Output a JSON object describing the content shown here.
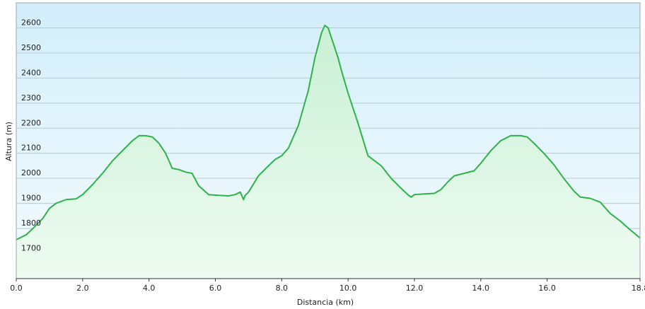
{
  "chart_data": {
    "type": "area",
    "xlabel": "Distancia  (km)",
    "ylabel": "Altura (m)",
    "xlim": [
      0,
      18.8
    ],
    "ylim": [
      1600,
      2700
    ],
    "xticks": [
      0,
      2,
      4,
      6,
      8,
      10,
      12,
      14,
      16,
      18.8
    ],
    "xtick_labels": [
      "0.0",
      "2.0",
      "4.0",
      "6.0",
      "8.0",
      "10.0",
      "12.0",
      "14.0",
      "16.0",
      "18.8"
    ],
    "yticks": [
      1700,
      1800,
      1900,
      2000,
      2100,
      2200,
      2300,
      2400,
      2500,
      2600
    ],
    "ytick_labels": [
      "1700",
      "1800",
      "1900",
      "2000",
      "2100",
      "2200",
      "2300",
      "2400",
      "2500",
      "2600"
    ],
    "grid": true,
    "colors": {
      "line": "#2db34a",
      "fill_top": "#c9f0d4",
      "fill_bottom": "#eefbf2",
      "bg_top": "#d2eefa",
      "bg_bottom": "#f4fbfe",
      "grid": "#b5c9d3"
    },
    "series": [
      {
        "x": [
          0.0,
          0.3,
          0.5,
          0.8,
          1.0,
          1.2,
          1.5,
          1.8,
          2.0,
          2.3,
          2.6,
          2.9,
          3.2,
          3.5,
          3.7,
          3.9,
          4.1,
          4.3,
          4.5,
          4.7,
          4.9,
          5.1,
          5.3,
          5.5,
          5.8,
          6.1,
          6.4,
          6.6,
          6.75,
          6.85,
          6.9,
          7.0,
          7.3,
          7.6,
          7.8,
          8.0,
          8.2,
          8.5,
          8.8,
          9.0,
          9.2,
          9.3,
          9.4,
          9.5,
          9.6,
          9.7,
          9.8,
          10.0,
          10.3,
          10.6,
          11.0,
          11.3,
          11.6,
          11.8,
          11.9,
          12.0,
          12.3,
          12.6,
          12.8,
          13.0,
          13.2,
          13.5,
          13.8,
          14.0,
          14.3,
          14.6,
          14.9,
          15.2,
          15.4,
          15.6,
          15.9,
          16.2,
          16.5,
          16.8,
          17.0,
          17.3,
          17.6,
          17.9,
          18.2,
          18.5,
          18.8
        ],
        "y": [
          1755,
          1775,
          1800,
          1840,
          1880,
          1900,
          1915,
          1918,
          1935,
          1975,
          2020,
          2070,
          2110,
          2150,
          2170,
          2170,
          2165,
          2140,
          2100,
          2040,
          2035,
          2025,
          2020,
          1970,
          1935,
          1932,
          1930,
          1935,
          1945,
          1915,
          1932,
          1945,
          2010,
          2050,
          2075,
          2090,
          2120,
          2210,
          2350,
          2480,
          2580,
          2610,
          2600,
          2560,
          2520,
          2480,
          2430,
          2340,
          2220,
          2090,
          2050,
          2000,
          1960,
          1935,
          1925,
          1935,
          1938,
          1940,
          1955,
          1985,
          2010,
          2020,
          2030,
          2060,
          2110,
          2150,
          2170,
          2170,
          2165,
          2140,
          2100,
          2055,
          2000,
          1950,
          1925,
          1920,
          1905,
          1860,
          1830,
          1795,
          1762
        ]
      }
    ]
  }
}
